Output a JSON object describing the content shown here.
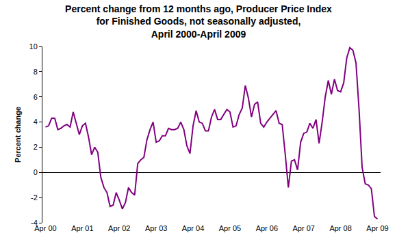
{
  "chart_data": {
    "type": "line",
    "title": "Percent change from 12 months ago, Producer Price Index\nfor Finished Goods, not seasonally adjusted,\nApril 2000-April 2009",
    "y_label": "Percent change",
    "categories": [
      "Apr 00",
      null,
      null,
      null,
      null,
      null,
      null,
      null,
      null,
      null,
      null,
      null,
      "Apr 01",
      null,
      null,
      null,
      null,
      null,
      null,
      null,
      null,
      null,
      null,
      null,
      "Apr 02",
      null,
      null,
      null,
      null,
      null,
      null,
      null,
      null,
      null,
      null,
      null,
      "Apr 03",
      null,
      null,
      null,
      null,
      null,
      null,
      null,
      null,
      null,
      null,
      null,
      "Apr 04",
      null,
      null,
      null,
      null,
      null,
      null,
      null,
      null,
      null,
      null,
      null,
      "Apr 05",
      null,
      null,
      null,
      null,
      null,
      null,
      null,
      null,
      null,
      null,
      null,
      "Apr 06",
      null,
      null,
      null,
      null,
      null,
      null,
      null,
      null,
      null,
      null,
      null,
      "Apr 07",
      null,
      null,
      null,
      null,
      null,
      null,
      null,
      null,
      null,
      null,
      null,
      "Apr 08",
      null,
      null,
      null,
      null,
      null,
      null,
      null,
      null,
      null,
      null,
      null,
      "Apr 09"
    ],
    "values": [
      3.6,
      3.7,
      4.3,
      4.3,
      3.4,
      3.5,
      3.7,
      3.8,
      3.6,
      4.8,
      3.9,
      3.0,
      3.7,
      3.9,
      2.8,
      1.4,
      2.0,
      1.6,
      -0.4,
      -1.2,
      -1.6,
      -2.7,
      -2.6,
      -1.6,
      -2.2,
      -2.9,
      -2.4,
      -1.2,
      -1.6,
      -1.8,
      0.7,
      1.0,
      1.2,
      2.6,
      3.4,
      4.0,
      2.4,
      2.5,
      2.9,
      2.9,
      3.5,
      3.4,
      3.4,
      3.5,
      4.0,
      3.4,
      2.1,
      1.5,
      3.7,
      4.9,
      4.0,
      3.9,
      3.3,
      3.3,
      4.4,
      5.0,
      4.2,
      4.2,
      4.6,
      5.0,
      4.8,
      3.6,
      3.7,
      4.6,
      5.1,
      6.9,
      5.9,
      4.4,
      5.4,
      5.6,
      3.9,
      3.6,
      4.0,
      4.3,
      4.6,
      4.9,
      3.9,
      3.8,
      1.4,
      -1.2,
      0.9,
      1.0,
      0.2,
      2.4,
      3.1,
      3.2,
      3.9,
      3.5,
      4.2,
      2.3,
      4.0,
      6.0,
      7.3,
      6.2,
      7.4,
      6.5,
      6.4,
      7.1,
      9.1,
      9.9,
      9.7,
      8.7,
      5.0,
      0.4,
      -0.9,
      -1.0,
      -1.3,
      -3.5,
      -3.7
    ],
    "color": "#800080",
    "ylim": [
      -4,
      10
    ],
    "yticks": [
      -4,
      -2,
      0,
      2,
      4,
      6,
      8,
      10
    ],
    "grid": false
  }
}
